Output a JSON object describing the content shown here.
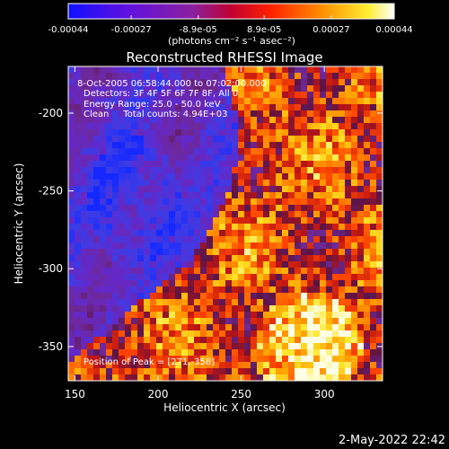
{
  "chart_data": {
    "type": "heatmap",
    "title": "Reconstructed RHESSI Image",
    "colorbar": {
      "tick_labels": [
        "-0.00044",
        "-0.00027",
        "-8.9e-05",
        "8.9e-05",
        "0.00027",
        "0.00044"
      ],
      "tick_values": [
        -0.00044,
        -0.00027,
        -8.9e-05,
        8.9e-05,
        0.00027,
        0.00044
      ],
      "range": [
        -0.00044,
        0.00044
      ],
      "unit_label": "(photons cm⁻² s⁻¹ asec⁻²)",
      "colormap": [
        "#0000ff",
        "#8000c0",
        "#ff0000",
        "#ff8000",
        "#ffff00",
        "#ffffff"
      ]
    },
    "xlabel": "Heliocentric X (arcsec)",
    "ylabel": "Heliocentric Y (arcsec)",
    "xlim": [
      146,
      335
    ],
    "ylim": [
      -372,
      -170
    ],
    "x_ticks": [
      150,
      200,
      250,
      300
    ],
    "y_ticks": [
      -200,
      -250,
      -300,
      -350
    ],
    "annotations": [
      "8-Oct-2005 06:58:44.000 to 07:02:00.000",
      "Detectors: 3F 4F 5F 6F 7F 8F, All 0",
      "Energy Range: 25.0 - 50.0 keV",
      "Clean     Total counts: 4.94E+03"
    ],
    "peak_label": "Position of Peak = [271,-358]",
    "peak": [
      271,
      -358
    ],
    "timestamp": "2-May-2022 22:42"
  }
}
